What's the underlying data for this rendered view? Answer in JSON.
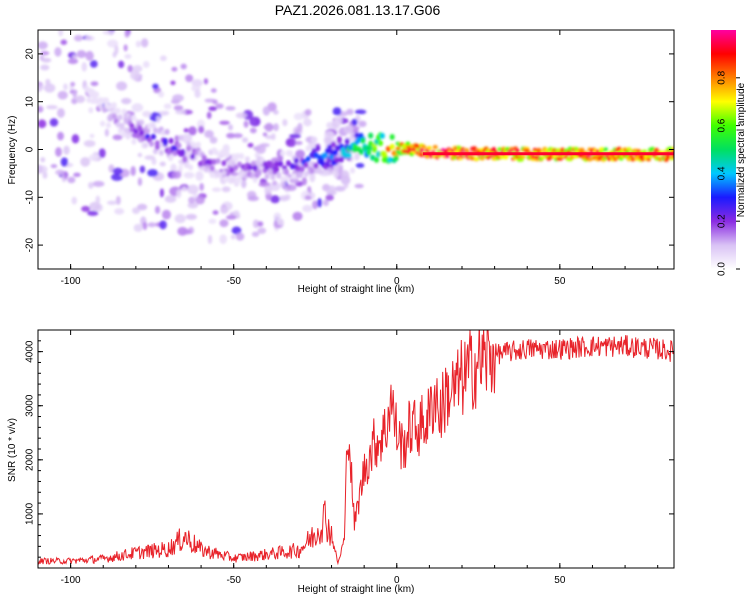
{
  "title": "PAZ1.2026.081.13.17.G06",
  "chart_data": [
    {
      "type": "heatmap",
      "title": "PAZ1.2026.081.13.17.G06",
      "xlabel": "Height of straight line (km)",
      "ylabel": "Frequency (Hz)",
      "xlim": [
        -110,
        85
      ],
      "ylim": [
        -25,
        25
      ],
      "x_ticks": [
        -100,
        -50,
        0,
        50
      ],
      "y_ticks": [
        -20,
        -10,
        0,
        10,
        20
      ],
      "colorbar": {
        "label": "Normalized spectral amplitude",
        "range": [
          0.0,
          1.0
        ],
        "ticks": [
          0.0,
          0.2,
          0.4,
          0.6,
          0.8
        ],
        "tick_labels": [
          "0.0",
          "0.2",
          "0.4",
          "0.6",
          "0.8"
        ],
        "colormap": [
          "#ffffff",
          "#d9c2f5",
          "#8a2be2",
          "#1a1aff",
          "#00c8ff",
          "#00e060",
          "#40ff00",
          "#ffff00",
          "#ff8000",
          "#ff0000",
          "#ff00a0"
        ]
      },
      "ridge": {
        "x": [
          -110,
          -100,
          -90,
          -80,
          -70,
          -60,
          -50,
          -40,
          -30,
          -20,
          -15,
          -10,
          -5,
          0,
          5,
          10,
          20,
          40,
          60,
          85
        ],
        "frequency": [
          15,
          12,
          8,
          4,
          1,
          -2,
          -4,
          -4,
          -3,
          -1,
          0,
          0.5,
          0.5,
          0.3,
          0,
          -0.5,
          -0.8,
          -1,
          -1,
          -1
        ],
        "amplitude": [
          0.05,
          0.08,
          0.15,
          0.25,
          0.3,
          0.25,
          0.2,
          0.25,
          0.3,
          0.4,
          0.5,
          0.6,
          0.75,
          0.85,
          0.9,
          0.95,
          0.95,
          0.9,
          0.9,
          0.9
        ]
      }
    },
    {
      "type": "line",
      "xlabel": "Height of straight line (km)",
      "ylabel": "SNR (10 * v/v)",
      "xlim": [
        -110,
        85
      ],
      "ylim": [
        0,
        4400
      ],
      "x_ticks": [
        -100,
        -50,
        0,
        50
      ],
      "y_ticks": [
        1000,
        2000,
        3000,
        4000
      ],
      "color": "#e8232a",
      "series": [
        {
          "name": "SNR",
          "x": [
            -110,
            -100,
            -90,
            -80,
            -70,
            -65,
            -60,
            -50,
            -40,
            -30,
            -25,
            -22,
            -20,
            -18,
            -16,
            -15,
            -13,
            -10,
            -7,
            -5,
            -3,
            -2,
            0,
            2,
            4,
            7,
            10,
            12,
            13,
            15,
            18,
            20,
            25,
            30,
            40,
            50,
            60,
            70,
            80,
            85
          ],
          "y": [
            130,
            130,
            170,
            280,
            350,
            580,
            340,
            180,
            250,
            330,
            620,
            950,
            600,
            80,
            560,
            2800,
            800,
            1800,
            2300,
            2400,
            2600,
            3200,
            2500,
            2200,
            2600,
            2600,
            2800,
            3300,
            2800,
            3200,
            3300,
            3500,
            3800,
            3950,
            4050,
            4050,
            4100,
            4100,
            4050,
            4000
          ]
        }
      ]
    }
  ]
}
